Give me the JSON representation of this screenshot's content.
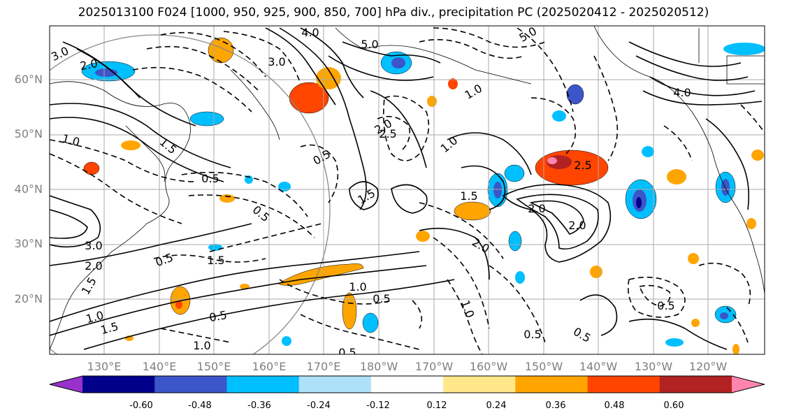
{
  "title": "2025013100 F024 [1000, 950, 925, 900, 850, 700] hPa div., precipitation PC (2025020412 - 2025020512)",
  "lat_ticks": [
    "60°N",
    "50°N",
    "40°N",
    "30°N",
    "20°N"
  ],
  "lon_ticks": [
    "130°E",
    "140°E",
    "150°E",
    "160°E",
    "170°E",
    "180°W",
    "170°W",
    "160°W",
    "150°W",
    "140°W",
    "130°W",
    "120°W"
  ],
  "colorbar": {
    "colors": [
      "#9932cc",
      "#00008b",
      "#3c55c8",
      "#00bfff",
      "#afe0fa",
      "#ffffff",
      "#ffe88a",
      "#ffa500",
      "#ff4500",
      "#b22222",
      "#ff85b0"
    ],
    "labels": [
      "-0.60",
      "-0.48",
      "-0.36",
      "-0.24",
      "-0.12",
      "0.12",
      "0.24",
      "0.36",
      "0.48",
      "0.60"
    ]
  },
  "contour_labels": {
    "solid": [
      "2.0",
      "3.0",
      "4.0",
      "1.0",
      "1.5",
      "0.5",
      "2.5",
      "3.0",
      "2.0",
      "1.5",
      "1.0",
      "0.5",
      "1.0",
      "2.0",
      "2.0",
      "1.5"
    ],
    "dashed": [
      "3.0",
      "4.0",
      "5.0",
      "5.0",
      "0.5",
      "1.0",
      "1.5",
      "0.5",
      "1.5",
      "2.0",
      "2.5",
      "1.0",
      "0.5",
      "1.5",
      "0.5",
      "0.5",
      "1.0",
      "0.5",
      "2.0",
      "0.5",
      "1.0",
      "0.5"
    ]
  }
}
